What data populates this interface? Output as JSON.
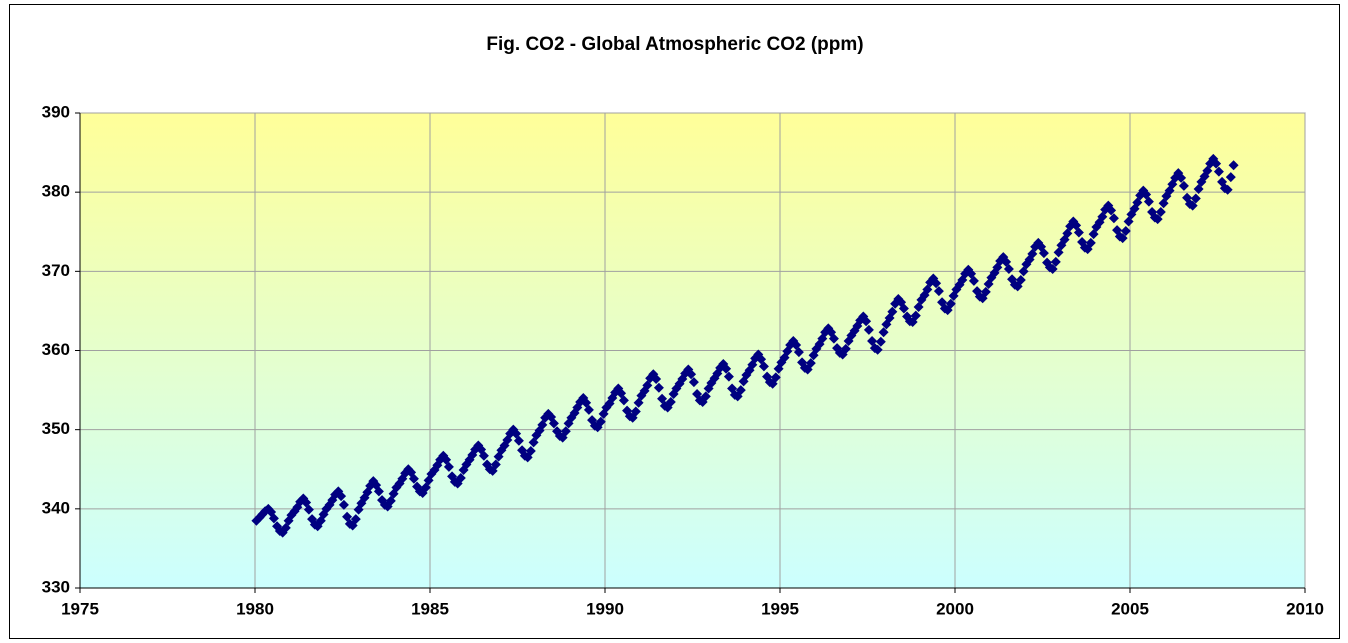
{
  "chart_data": {
    "type": "scatter",
    "title": "Fig. CO2 - Global Atmospheric CO2 (ppm)",
    "color": "#000080",
    "grid": true,
    "xlim": [
      1975,
      2010
    ],
    "xticks": [
      1975,
      1980,
      1985,
      1990,
      1995,
      2000,
      2005,
      2010
    ],
    "ylim": [
      330,
      390
    ],
    "yticks": [
      330,
      340,
      350,
      360,
      370,
      380,
      390
    ],
    "x": [
      1980.04,
      1980.13,
      1980.21,
      1980.29,
      1980.38,
      1980.46,
      1980.54,
      1980.63,
      1980.71,
      1980.79,
      1980.88,
      1980.96,
      1981.04,
      1981.13,
      1981.21,
      1981.29,
      1981.38,
      1981.46,
      1981.54,
      1981.63,
      1981.71,
      1981.79,
      1981.88,
      1981.96,
      1982.04,
      1982.13,
      1982.21,
      1982.29,
      1982.38,
      1982.46,
      1982.54,
      1982.63,
      1982.71,
      1982.79,
      1982.88,
      1982.96,
      1983.04,
      1983.13,
      1983.21,
      1983.29,
      1983.38,
      1983.46,
      1983.54,
      1983.63,
      1983.71,
      1983.79,
      1983.88,
      1983.96,
      1984.04,
      1984.13,
      1984.21,
      1984.29,
      1984.38,
      1984.46,
      1984.54,
      1984.63,
      1984.71,
      1984.79,
      1984.88,
      1984.96,
      1985.04,
      1985.13,
      1985.21,
      1985.29,
      1985.38,
      1985.46,
      1985.54,
      1985.63,
      1985.71,
      1985.79,
      1985.88,
      1985.96,
      1986.04,
      1986.13,
      1986.21,
      1986.29,
      1986.38,
      1986.46,
      1986.54,
      1986.63,
      1986.71,
      1986.79,
      1986.88,
      1986.96,
      1987.04,
      1987.13,
      1987.21,
      1987.29,
      1987.38,
      1987.46,
      1987.54,
      1987.63,
      1987.71,
      1987.79,
      1987.88,
      1987.96,
      1988.04,
      1988.13,
      1988.21,
      1988.29,
      1988.38,
      1988.46,
      1988.54,
      1988.63,
      1988.71,
      1988.79,
      1988.88,
      1988.96,
      1989.04,
      1989.13,
      1989.21,
      1989.29,
      1989.38,
      1989.46,
      1989.54,
      1989.63,
      1989.71,
      1989.79,
      1989.88,
      1989.96,
      1990.04,
      1990.13,
      1990.21,
      1990.29,
      1990.38,
      1990.46,
      1990.54,
      1990.63,
      1990.71,
      1990.79,
      1990.88,
      1990.96,
      1991.04,
      1991.13,
      1991.21,
      1991.29,
      1991.38,
      1991.46,
      1991.54,
      1991.63,
      1991.71,
      1991.79,
      1991.88,
      1991.96,
      1992.04,
      1992.13,
      1992.21,
      1992.29,
      1992.38,
      1992.46,
      1992.54,
      1992.63,
      1992.71,
      1992.79,
      1992.88,
      1992.96,
      1993.04,
      1993.13,
      1993.21,
      1993.29,
      1993.38,
      1993.46,
      1993.54,
      1993.63,
      1993.71,
      1993.79,
      1993.88,
      1993.96,
      1994.04,
      1994.13,
      1994.21,
      1994.29,
      1994.38,
      1994.46,
      1994.54,
      1994.63,
      1994.71,
      1994.79,
      1994.88,
      1994.96,
      1995.04,
      1995.13,
      1995.21,
      1995.29,
      1995.38,
      1995.46,
      1995.54,
      1995.63,
      1995.71,
      1995.79,
      1995.88,
      1995.96,
      1996.04,
      1996.13,
      1996.21,
      1996.29,
      1996.38,
      1996.46,
      1996.54,
      1996.63,
      1996.71,
      1996.79,
      1996.88,
      1996.96,
      1997.04,
      1997.13,
      1997.21,
      1997.29,
      1997.38,
      1997.46,
      1997.54,
      1997.63,
      1997.71,
      1997.79,
      1997.88,
      1997.96,
      1998.04,
      1998.13,
      1998.21,
      1998.29,
      1998.38,
      1998.46,
      1998.54,
      1998.63,
      1998.71,
      1998.79,
      1998.88,
      1998.96,
      1999.04,
      1999.13,
      1999.21,
      1999.29,
      1999.38,
      1999.46,
      1999.54,
      1999.63,
      1999.71,
      1999.79,
      1999.88,
      1999.96,
      2000.04,
      2000.13,
      2000.21,
      2000.29,
      2000.38,
      2000.46,
      2000.54,
      2000.63,
      2000.71,
      2000.79,
      2000.88,
      2000.96,
      2001.04,
      2001.13,
      2001.21,
      2001.29,
      2001.38,
      2001.46,
      2001.54,
      2001.63,
      2001.71,
      2001.79,
      2001.88,
      2001.96,
      2002.04,
      2002.13,
      2002.21,
      2002.29,
      2002.38,
      2002.46,
      2002.54,
      2002.63,
      2002.71,
      2002.79,
      2002.88,
      2002.96,
      2003.04,
      2003.13,
      2003.21,
      2003.29,
      2003.38,
      2003.46,
      2003.54,
      2003.63,
      2003.71,
      2003.79,
      2003.88,
      2003.96,
      2004.04,
      2004.13,
      2004.21,
      2004.29,
      2004.38,
      2004.46,
      2004.54,
      2004.63,
      2004.71,
      2004.79,
      2004.88,
      2004.96,
      2005.04,
      2005.13,
      2005.21,
      2005.29,
      2005.38,
      2005.46,
      2005.54,
      2005.63,
      2005.71,
      2005.79,
      2005.88,
      2005.96,
      2006.04,
      2006.13,
      2006.21,
      2006.29,
      2006.38,
      2006.46,
      2006.54,
      2006.63,
      2006.71,
      2006.79,
      2006.88,
      2006.96,
      2007.04,
      2007.13,
      2007.21,
      2007.29,
      2007.38,
      2007.46,
      2007.54,
      2007.63,
      2007.71,
      2007.79,
      2007.88,
      2007.96
    ],
    "values": [
      338.5,
      338.9,
      339.3,
      339.7,
      340.0,
      339.6,
      338.8,
      337.8,
      337.2,
      337.0,
      337.6,
      338.5,
      339.2,
      339.7,
      340.2,
      340.9,
      341.3,
      340.8,
      339.9,
      338.7,
      338.0,
      337.8,
      338.5,
      339.3,
      340.0,
      340.5,
      341.1,
      341.8,
      342.2,
      341.6,
      340.5,
      339.0,
      338.1,
      337.9,
      338.7,
      339.9,
      340.7,
      341.4,
      342.1,
      342.9,
      343.5,
      343.0,
      342.2,
      341.1,
      340.5,
      340.3,
      341.0,
      341.9,
      342.7,
      343.2,
      343.8,
      344.5,
      345.0,
      344.6,
      343.8,
      342.8,
      342.2,
      342.0,
      342.7,
      343.6,
      344.4,
      344.9,
      345.5,
      346.2,
      346.7,
      346.2,
      345.3,
      344.1,
      343.4,
      343.2,
      343.9,
      344.9,
      345.6,
      346.2,
      346.8,
      347.5,
      348.0,
      347.5,
      346.7,
      345.6,
      345.0,
      344.8,
      345.6,
      346.6,
      347.4,
      348.0,
      348.7,
      349.5,
      350.0,
      349.5,
      348.6,
      347.4,
      346.7,
      346.5,
      347.3,
      348.4,
      349.3,
      349.9,
      350.6,
      351.5,
      352.0,
      351.6,
      350.8,
      349.8,
      349.2,
      349.0,
      349.8,
      350.8,
      351.5,
      352.1,
      352.8,
      353.5,
      354.0,
      353.4,
      352.5,
      351.2,
      350.5,
      350.3,
      351.0,
      352.0,
      352.8,
      353.3,
      354.0,
      354.7,
      355.2,
      354.6,
      353.7,
      352.4,
      351.7,
      351.5,
      352.3,
      353.4,
      354.3,
      354.9,
      355.6,
      356.5,
      357.0,
      356.4,
      355.3,
      353.9,
      353.0,
      352.8,
      353.5,
      354.5,
      355.2,
      355.8,
      356.4,
      357.1,
      357.6,
      357.0,
      356.0,
      354.5,
      353.7,
      353.5,
      354.2,
      355.2,
      355.9,
      356.5,
      357.1,
      357.8,
      358.3,
      357.7,
      356.7,
      355.2,
      354.4,
      354.2,
      355.0,
      356.1,
      356.9,
      357.5,
      358.2,
      359.0,
      359.5,
      358.9,
      358.0,
      356.7,
      356.0,
      355.8,
      356.6,
      357.7,
      358.5,
      359.1,
      359.9,
      360.7,
      361.2,
      360.7,
      359.8,
      358.5,
      357.8,
      357.6,
      358.4,
      359.4,
      360.2,
      360.8,
      361.5,
      362.3,
      362.8,
      362.3,
      361.5,
      360.3,
      359.7,
      359.5,
      360.2,
      361.2,
      361.9,
      362.5,
      363.1,
      363.8,
      364.3,
      363.7,
      362.6,
      361.2,
      360.3,
      360.1,
      361.1,
      362.3,
      363.3,
      364.1,
      364.9,
      365.9,
      366.5,
      366.1,
      365.3,
      364.3,
      363.7,
      363.6,
      364.4,
      365.5,
      366.4,
      367.0,
      367.7,
      368.6,
      369.1,
      368.5,
      367.5,
      366.1,
      365.3,
      365.1,
      365.9,
      366.9,
      367.7,
      368.3,
      368.9,
      369.7,
      370.2,
      369.7,
      368.8,
      367.5,
      366.8,
      366.6,
      367.4,
      368.4,
      369.2,
      369.8,
      370.5,
      371.3,
      371.8,
      371.2,
      370.3,
      369.0,
      368.3,
      368.1,
      368.9,
      370.0,
      370.9,
      371.5,
      372.2,
      373.1,
      373.6,
      373.1,
      372.3,
      371.1,
      370.5,
      370.3,
      371.2,
      372.4,
      373.3,
      374.0,
      374.8,
      375.7,
      376.3,
      375.8,
      374.9,
      373.7,
      373.0,
      372.8,
      373.6,
      374.7,
      375.6,
      376.2,
      376.9,
      377.8,
      378.3,
      377.7,
      376.7,
      375.2,
      374.4,
      374.2,
      375.1,
      376.3,
      377.2,
      377.9,
      378.7,
      379.6,
      380.2,
      379.7,
      378.8,
      377.5,
      376.8,
      376.6,
      377.5,
      378.6,
      379.5,
      380.2,
      381.0,
      381.8,
      382.4,
      381.8,
      380.8,
      379.3,
      378.5,
      378.3,
      379.2,
      380.4,
      381.3,
      382.0,
      382.7,
      383.6,
      384.2,
      383.6,
      382.6,
      381.3,
      380.5,
      380.3,
      381.9,
      383.4
    ]
  }
}
